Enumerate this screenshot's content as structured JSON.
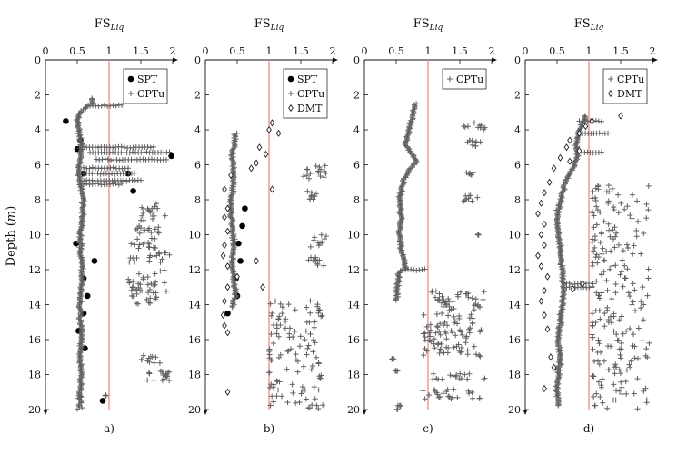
{
  "figure": {
    "title_main": "FS",
    "title_sub": "Liq",
    "ylabel_main": "Depth (",
    "ylabel_unit": "m",
    "ylabel_end": ")"
  },
  "colors": {
    "axis": "#111111",
    "threshold_line": "#f08080",
    "cptu": "#606060",
    "spt": "#000000",
    "dmt": "#222222"
  },
  "chart_data": [
    {
      "type": "scatter",
      "panel_label": "a)",
      "xlim": [
        0,
        2
      ],
      "ylim": [
        0,
        20
      ],
      "y_inverted": true,
      "xticks": [
        0,
        0.5,
        1,
        1.5,
        2
      ],
      "xtick_labels": [
        "0",
        "0.5",
        "1",
        "1.5",
        "2"
      ],
      "yticks": [
        0,
        2,
        4,
        6,
        8,
        10,
        12,
        14,
        16,
        18,
        20
      ],
      "ytick_labels": [
        "0",
        "2",
        "4",
        "6",
        "8",
        "10",
        "12",
        "14",
        "16",
        "18",
        "20"
      ],
      "threshold_x": 1,
      "legend": {
        "position": "top-right",
        "entries": [
          "SPT",
          "CPTu"
        ]
      },
      "series": [
        {
          "name": "SPT",
          "marker": "dot",
          "points": [
            [
              0.32,
              3.5
            ],
            [
              0.55,
              4.6
            ],
            [
              0.5,
              5.1
            ],
            [
              1.98,
              5.5
            ],
            [
              1.3,
              6.5
            ],
            [
              0.6,
              6.5
            ],
            [
              1.38,
              7.5
            ],
            [
              0.48,
              10.5
            ],
            [
              0.77,
              11.5
            ],
            [
              0.6,
              12.5
            ],
            [
              0.66,
              13.5
            ],
            [
              0.6,
              14.5
            ],
            [
              0.52,
              15.5
            ],
            [
              0.62,
              16.5
            ],
            [
              0.9,
              19.5
            ]
          ]
        },
        {
          "name": "CPTu",
          "marker": "plus",
          "profile": [
            [
              2.2,
              0.72
            ],
            [
              2.5,
              0.75
            ],
            [
              2.7,
              0.62
            ],
            [
              3.0,
              0.55
            ],
            [
              3.4,
              0.5
            ],
            [
              4.0,
              0.52
            ],
            [
              4.8,
              0.56
            ],
            [
              5.5,
              0.55
            ],
            [
              6.3,
              0.52
            ],
            [
              7.2,
              0.56
            ],
            [
              8.0,
              0.6
            ],
            [
              9.0,
              0.58
            ],
            [
              10.0,
              0.55
            ],
            [
              11.0,
              0.56
            ],
            [
              12.0,
              0.58
            ],
            [
              13.0,
              0.56
            ],
            [
              14.0,
              0.54
            ],
            [
              15.0,
              0.55
            ],
            [
              16.0,
              0.56
            ],
            [
              17.0,
              0.54
            ],
            [
              18.0,
              0.56
            ],
            [
              19.0,
              0.55
            ],
            [
              19.3,
              0.55
            ]
          ],
          "excursions": [
            [
              2.6,
              0.7,
              1.2
            ],
            [
              5.0,
              0.6,
              1.7
            ],
            [
              5.3,
              0.7,
              1.95
            ],
            [
              5.7,
              0.8,
              1.9
            ],
            [
              6.2,
              0.6,
              1.3
            ],
            [
              6.5,
              0.6,
              1.4
            ],
            [
              6.9,
              0.6,
              1.5
            ],
            [
              7.1,
              0.6,
              1.2
            ]
          ],
          "clusters": [
            [
              1.5,
              1.9,
              8.2,
              9.2
            ],
            [
              1.4,
              1.8,
              9.4,
              10.0
            ],
            [
              1.25,
              1.75,
              10.2,
              10.8
            ],
            [
              1.3,
              1.95,
              11.0,
              11.6
            ],
            [
              1.3,
              1.9,
              12.0,
              14.0
            ],
            [
              1.5,
              1.8,
              16.9,
              17.4
            ],
            [
              1.6,
              1.95,
              17.8,
              18.4
            ]
          ],
          "tail": [
            [
              0.95,
              19.2
            ],
            [
              1.9,
              18.1
            ]
          ],
          "bottom": [
            [
              0.5,
              0.58,
              19.2,
              20
            ]
          ]
        }
      ]
    },
    {
      "type": "scatter",
      "panel_label": "b)",
      "xlim": [
        0,
        2
      ],
      "ylim": [
        0,
        20
      ],
      "y_inverted": true,
      "xticks": [
        0,
        0.5,
        1,
        1.5,
        2
      ],
      "xtick_labels": [
        "0",
        "0.5",
        "1",
        "1.5",
        "2"
      ],
      "yticks": [
        0,
        2,
        4,
        6,
        8,
        10,
        12,
        14,
        16,
        18,
        20
      ],
      "ytick_labels": [
        "0",
        "2",
        "4",
        "6",
        "8",
        "10",
        "12",
        "14",
        "16",
        "18",
        "20"
      ],
      "threshold_x": 1,
      "legend": {
        "position": "top-right",
        "entries": [
          "SPT",
          "CPTu",
          "DMT"
        ]
      },
      "series": [
        {
          "name": "SPT",
          "marker": "dot",
          "points": [
            [
              0.62,
              8.5
            ],
            [
              0.58,
              9.5
            ],
            [
              0.52,
              10.5
            ],
            [
              0.55,
              11.5
            ],
            [
              0.48,
              12.5
            ],
            [
              0.5,
              13.5
            ],
            [
              0.35,
              14.5
            ]
          ]
        },
        {
          "name": "CPTu",
          "marker": "plus",
          "profile": [
            [
              4.2,
              0.48
            ],
            [
              5.5,
              0.42
            ],
            [
              6.5,
              0.45
            ],
            [
              7.5,
              0.42
            ],
            [
              8.5,
              0.4
            ],
            [
              9.5,
              0.42
            ],
            [
              10.5,
              0.45
            ],
            [
              11.5,
              0.42
            ],
            [
              12.5,
              0.45
            ],
            [
              13.5,
              0.48
            ],
            [
              14.2,
              0.42
            ]
          ],
          "clusters": [
            [
              1.5,
              1.9,
              6.0,
              6.8
            ],
            [
              1.55,
              1.8,
              7.5,
              8.0
            ],
            [
              1.65,
              1.9,
              10.0,
              10.8
            ],
            [
              1.6,
              1.9,
              11.3,
              11.8
            ]
          ],
          "lower_block": [
            [
              1.0,
              1.85,
              13.8,
              20
            ]
          ]
        },
        {
          "name": "DMT",
          "marker": "diamond",
          "points": [
            [
              1.05,
              3.6
            ],
            [
              1.0,
              4.0
            ],
            [
              1.15,
              4.2
            ],
            [
              0.85,
              5.0
            ],
            [
              0.95,
              5.4
            ],
            [
              0.8,
              5.9
            ],
            [
              0.72,
              6.2
            ],
            [
              0.4,
              6.6
            ],
            [
              0.3,
              7.4
            ],
            [
              0.35,
              8.5
            ],
            [
              0.3,
              9.0
            ],
            [
              0.35,
              9.8
            ],
            [
              0.3,
              10.6
            ],
            [
              0.28,
              11.2
            ],
            [
              0.35,
              11.8
            ],
            [
              0.5,
              12.4
            ],
            [
              0.35,
              13.0
            ],
            [
              0.3,
              13.8
            ],
            [
              0.28,
              14.6
            ],
            [
              0.3,
              15.2
            ],
            [
              0.35,
              15.6
            ],
            [
              1.05,
              7.4
            ],
            [
              0.35,
              19.0
            ],
            [
              0.9,
              13.0
            ],
            [
              0.8,
              11.5
            ]
          ]
        }
      ]
    },
    {
      "type": "scatter",
      "panel_label": "c)",
      "xlim": [
        0,
        2
      ],
      "ylim": [
        0,
        20
      ],
      "y_inverted": true,
      "xticks": [
        0,
        0.5,
        1,
        1.5,
        2
      ],
      "xtick_labels": [
        "0",
        "0.5",
        "1",
        "1.5",
        "2"
      ],
      "yticks": [
        0,
        2,
        4,
        6,
        8,
        10,
        12,
        14,
        16,
        18,
        20
      ],
      "ytick_labels": [
        "0",
        "2",
        "4",
        "6",
        "8",
        "10",
        "12",
        "14",
        "16",
        "18",
        "20"
      ],
      "threshold_x": 1,
      "legend": {
        "position": "top-right",
        "entries": [
          "CPTu"
        ]
      },
      "series": [
        {
          "name": "CPTu",
          "marker": "plus",
          "profile": [
            [
              2.5,
              0.8
            ],
            [
              4.8,
              0.65
            ],
            [
              5.4,
              0.75
            ],
            [
              5.8,
              0.82
            ],
            [
              6.3,
              0.7
            ],
            [
              7.0,
              0.6
            ],
            [
              8.0,
              0.55
            ],
            [
              9.0,
              0.58
            ],
            [
              10.0,
              0.55
            ],
            [
              11.0,
              0.6
            ],
            [
              11.8,
              0.65
            ],
            [
              12.2,
              0.55
            ],
            [
              13.0,
              0.52
            ],
            [
              13.8,
              0.5
            ]
          ],
          "excursions": [
            [
              12.0,
              0.6,
              0.95
            ]
          ],
          "clusters": [
            [
              1.55,
              1.9,
              3.6,
              4.0
            ],
            [
              1.6,
              1.9,
              4.6,
              5.0
            ],
            [
              1.6,
              1.75,
              6.4,
              6.6
            ],
            [
              1.55,
              1.8,
              7.7,
              8.1
            ],
            [
              1.05,
              1.9,
              13.2,
              14.5
            ],
            [
              0.9,
              1.85,
              14.5,
              17.0
            ],
            [
              1.05,
              1.9,
              17.9,
              18.3
            ],
            [
              0.9,
              1.85,
              18.8,
              19.4
            ]
          ],
          "tail": [
            [
              1.8,
              10.0
            ],
            [
              0.45,
              17.1
            ],
            [
              0.5,
              17.8
            ],
            [
              0.55,
              19.8
            ],
            [
              0.52,
              20.0
            ]
          ]
        }
      ]
    },
    {
      "type": "scatter",
      "panel_label": "d)",
      "xlim": [
        0,
        2
      ],
      "ylim": [
        0,
        20
      ],
      "y_inverted": true,
      "xticks": [
        0,
        0.5,
        1,
        1.5,
        2
      ],
      "xtick_labels": [
        "0",
        "0.5",
        "1",
        "1.5",
        "2"
      ],
      "yticks": [
        0,
        2,
        4,
        6,
        8,
        10,
        12,
        14,
        16,
        18,
        20
      ],
      "ytick_labels": [
        "0",
        "2",
        "4",
        "6",
        "8",
        "10",
        "12",
        "14",
        "16",
        "18",
        "20"
      ],
      "threshold_x": 1,
      "legend": {
        "position": "top-right",
        "entries": [
          "CPTu",
          "DMT"
        ]
      },
      "series": [
        {
          "name": "CPTu",
          "marker": "plus",
          "profile": [
            [
              3.2,
              0.95
            ],
            [
              4.0,
              0.85
            ],
            [
              4.8,
              0.8
            ],
            [
              5.5,
              0.82
            ],
            [
              6.2,
              0.75
            ],
            [
              7.0,
              0.62
            ],
            [
              8.0,
              0.55
            ],
            [
              9.0,
              0.5
            ],
            [
              10.0,
              0.52
            ],
            [
              11.0,
              0.55
            ],
            [
              12.0,
              0.58
            ],
            [
              13.0,
              0.6
            ],
            [
              14.0,
              0.58
            ],
            [
              15.0,
              0.55
            ],
            [
              16.0,
              0.52
            ],
            [
              17.0,
              0.55
            ],
            [
              18.0,
              0.52
            ],
            [
              19.0,
              0.5
            ],
            [
              19.8,
              0.52
            ]
          ],
          "excursions": [
            [
              3.5,
              0.85,
              1.2
            ],
            [
              4.2,
              0.9,
              1.3
            ],
            [
              5.3,
              0.8,
              1.2
            ],
            [
              12.8,
              0.65,
              1.0
            ],
            [
              13.0,
              0.65,
              1.05
            ]
          ],
          "lower_block": [
            [
              1.05,
              1.95,
              7.2,
              20
            ]
          ]
        },
        {
          "name": "DMT",
          "marker": "diamond",
          "points": [
            [
              1.5,
              3.2
            ],
            [
              1.05,
              3.5
            ],
            [
              0.95,
              3.8
            ],
            [
              0.85,
              4.2
            ],
            [
              0.7,
              4.6
            ],
            [
              0.65,
              5.0
            ],
            [
              0.55,
              5.6
            ],
            [
              0.45,
              6.2
            ],
            [
              0.38,
              7.0
            ],
            [
              0.3,
              7.6
            ],
            [
              0.25,
              8.2
            ],
            [
              0.2,
              8.8
            ],
            [
              0.3,
              9.4
            ],
            [
              0.25,
              10.0
            ],
            [
              0.3,
              10.6
            ],
            [
              0.2,
              11.2
            ],
            [
              0.25,
              11.8
            ],
            [
              0.35,
              12.4
            ],
            [
              0.3,
              13.2
            ],
            [
              0.25,
              13.8
            ],
            [
              0.3,
              14.6
            ],
            [
              0.35,
              15.4
            ],
            [
              0.4,
              17.0
            ],
            [
              0.45,
              17.6
            ],
            [
              0.3,
              18.8
            ],
            [
              0.9,
              12.8
            ],
            [
              0.75,
              13.1
            ],
            [
              0.85,
              5.2
            ],
            [
              0.7,
              5.8
            ]
          ]
        }
      ]
    }
  ]
}
